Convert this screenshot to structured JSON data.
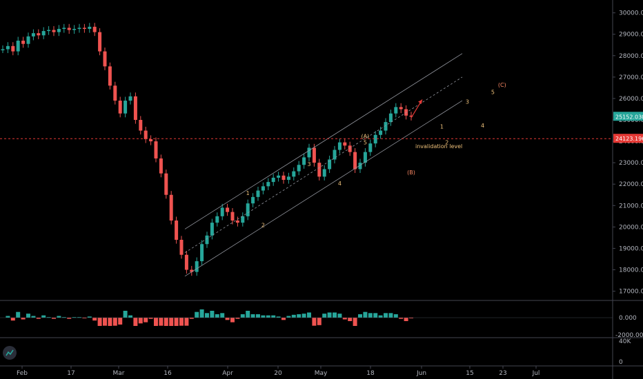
{
  "chart_data": {
    "type": "line",
    "symbol_type": "candlestick",
    "price_axis": {
      "ticks": [
        "30000.000",
        "29000.000",
        "28000.000",
        "27000.000",
        "26000.000",
        "25000.000",
        "24000.000",
        "23000.000",
        "22000.000",
        "21000.000",
        "20000.000",
        "19000.000",
        "18000.000",
        "17000.000"
      ],
      "ylim": [
        16600,
        30600
      ]
    },
    "time_axis": {
      "ticks": [
        "Feb",
        "17",
        "Mar",
        "16",
        "Apr",
        "20",
        "May",
        "18",
        "Jun",
        "15",
        "23",
        "Jul"
      ]
    },
    "last_price": "25152.030",
    "invalidation_price": "24123.196",
    "invalidation_text": "invalidation level",
    "series": [
      {
        "values": [
          28300,
          28450,
          28200,
          28700,
          28550,
          28900,
          29050,
          28950,
          29150,
          29200,
          29100,
          29250,
          29300,
          29200,
          29250,
          29300,
          29250,
          29350,
          29100,
          28200,
          27500,
          26600,
          25900,
          25300,
          25900,
          26100,
          25000,
          24500,
          24100,
          24000,
          23200,
          22500,
          21500,
          20300,
          19400,
          18700,
          18000,
          17900,
          18400,
          19200,
          19600,
          20200,
          20500,
          20900,
          20700,
          20300,
          20200,
          20500,
          21100,
          21400,
          21700,
          21900,
          22100,
          22300,
          22400,
          22200,
          22350,
          22600,
          22900,
          23250,
          23700,
          23000,
          22350,
          22700,
          23150,
          23600,
          23950,
          23800,
          23500,
          22700,
          23000,
          23500,
          23900,
          24300,
          24500,
          24900,
          25300,
          25600,
          25500,
          25200,
          25150
        ]
      }
    ],
    "oscillator": {
      "ticks": [
        "0.000",
        "-2000.000"
      ]
    },
    "volume": {
      "ticks": [
        "40K",
        "0"
      ]
    },
    "wave_labels": [
      {
        "text": "1",
        "x": 48,
        "y": 21500
      },
      {
        "text": "2",
        "x": 51,
        "y": 20000
      },
      {
        "text": "3",
        "x": 60,
        "y": 22850
      },
      {
        "text": "4",
        "x": 66,
        "y": 21950
      },
      {
        "text": "(A)",
        "x": 71,
        "y": 24150
      },
      {
        "text": "5",
        "x": 71,
        "y": 23850
      },
      {
        "text": "(B)",
        "x": 80,
        "y": 22450
      },
      {
        "text": "1",
        "x": 86,
        "y": 24600
      },
      {
        "text": "2",
        "x": 87,
        "y": 23850
      },
      {
        "text": "3",
        "x": 91,
        "y": 25750
      },
      {
        "text": "4",
        "x": 94,
        "y": 24650
      },
      {
        "text": "5",
        "x": 96,
        "y": 26200
      },
      {
        "text": "(C)",
        "x": 97,
        "y": 26550
      }
    ],
    "colors": {
      "up": "#26a69a",
      "down": "#ef5350",
      "label": "#f0c27b",
      "label_c": "#ff8a65",
      "channel": "#9598a1",
      "invalidation": "#e53935",
      "last_price_bg": "#26a69a"
    }
  }
}
